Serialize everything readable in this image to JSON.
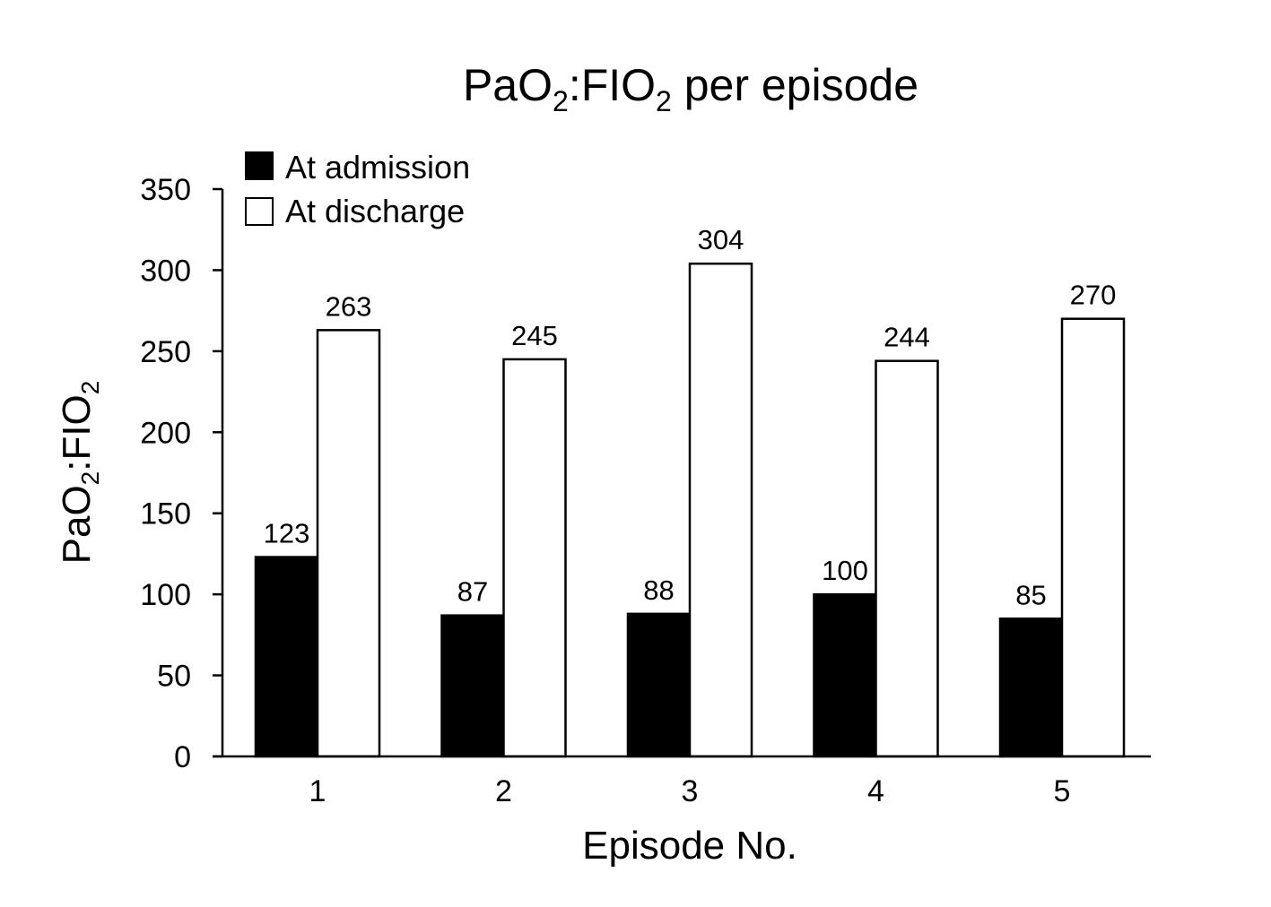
{
  "chart_data": {
    "type": "bar",
    "title": {
      "parts": [
        {
          "text": "PaO",
          "sub": false
        },
        {
          "text": "2",
          "sub": true
        },
        {
          "text": ":FIO",
          "sub": false
        },
        {
          "text": "2",
          "sub": true
        },
        {
          "text": " per episode",
          "sub": false
        }
      ]
    },
    "xlabel": "Episode No.",
    "ylabel": {
      "parts": [
        {
          "text": "PaO",
          "sub": false
        },
        {
          "text": "2",
          "sub": true
        },
        {
          "text": ":FIO",
          "sub": false
        },
        {
          "text": "2",
          "sub": true
        }
      ]
    },
    "categories": [
      "1",
      "2",
      "3",
      "4",
      "5"
    ],
    "ylim": [
      0,
      350
    ],
    "yticks": [
      "0",
      "50",
      "100",
      "150",
      "200",
      "250",
      "300",
      "350"
    ],
    "grid": false,
    "legend_position": "top-left",
    "series": [
      {
        "name": "At admission",
        "color": "#000000",
        "values": [
          123,
          87,
          88,
          100,
          85
        ]
      },
      {
        "name": "At discharge",
        "color": "#ffffff",
        "values": [
          263,
          245,
          304,
          244,
          270
        ]
      }
    ]
  }
}
